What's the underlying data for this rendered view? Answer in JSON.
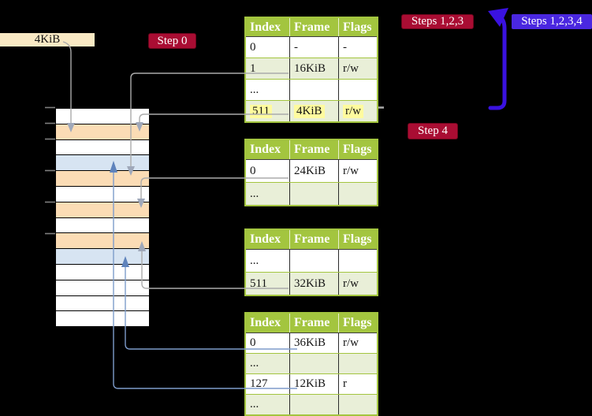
{
  "labels": {
    "page_size": "4KiB",
    "step0": "Step 0",
    "steps123": "Steps 1,2,3",
    "steps1234": "Steps 1,2,3,4",
    "step4": "Step 4"
  },
  "memory_stack": {
    "rows": [
      "plain",
      "orange",
      "plain",
      "blue",
      "orange",
      "plain",
      "orange",
      "plain",
      "orange",
      "blue",
      "plain",
      "plain",
      "plain",
      "plain"
    ]
  },
  "tables": [
    {
      "name": "page-table-1",
      "headers": [
        "Index",
        "Frame",
        "Flags"
      ],
      "rows": [
        {
          "cells": [
            "0",
            "-",
            "-"
          ],
          "shaded": false,
          "highlight": false
        },
        {
          "cells": [
            "1",
            "16KiB",
            "r/w"
          ],
          "shaded": true,
          "highlight": false
        },
        {
          "cells": [
            "...",
            "",
            ""
          ],
          "shaded": false,
          "highlight": false
        },
        {
          "cells": [
            "511",
            "4KiB",
            "r/w"
          ],
          "shaded": true,
          "highlight": true
        }
      ]
    },
    {
      "name": "page-table-2",
      "headers": [
        "Index",
        "Frame",
        "Flags"
      ],
      "rows": [
        {
          "cells": [
            "0",
            "24KiB",
            "r/w"
          ],
          "shaded": false,
          "highlight": false
        },
        {
          "cells": [
            "...",
            "",
            ""
          ],
          "shaded": true,
          "highlight": false
        }
      ]
    },
    {
      "name": "page-table-3",
      "headers": [
        "Index",
        "Frame",
        "Flags"
      ],
      "rows": [
        {
          "cells": [
            "...",
            "",
            ""
          ],
          "shaded": false,
          "highlight": false
        },
        {
          "cells": [
            "511",
            "32KiB",
            "r/w"
          ],
          "shaded": true,
          "highlight": false
        }
      ]
    },
    {
      "name": "page-table-4",
      "headers": [
        "Index",
        "Frame",
        "Flags"
      ],
      "rows": [
        {
          "cells": [
            "0",
            "36KiB",
            "r/w"
          ],
          "shaded": false,
          "highlight": false
        },
        {
          "cells": [
            "...",
            "",
            ""
          ],
          "shaded": true,
          "highlight": false
        },
        {
          "cells": [
            "127",
            "12KiB",
            "r"
          ],
          "shaded": false,
          "highlight": false
        },
        {
          "cells": [
            "...",
            "",
            ""
          ],
          "shaded": true,
          "highlight": false
        }
      ]
    }
  ],
  "colors": {
    "header_green": "#A3C53F",
    "row_green": "#E9EFD8",
    "highlight_yellow": "#FFFB9E",
    "stack_orange": "#FBDCB5",
    "stack_blue": "#D7E4F2",
    "label_cream": "#F9E9C4",
    "step_red": "#A90D33",
    "step_blue": "#4A27E0",
    "arrow_blue": "#3A12E0",
    "connector_gray": "#ABABAB",
    "connector_blue": "#7E9CCB"
  }
}
